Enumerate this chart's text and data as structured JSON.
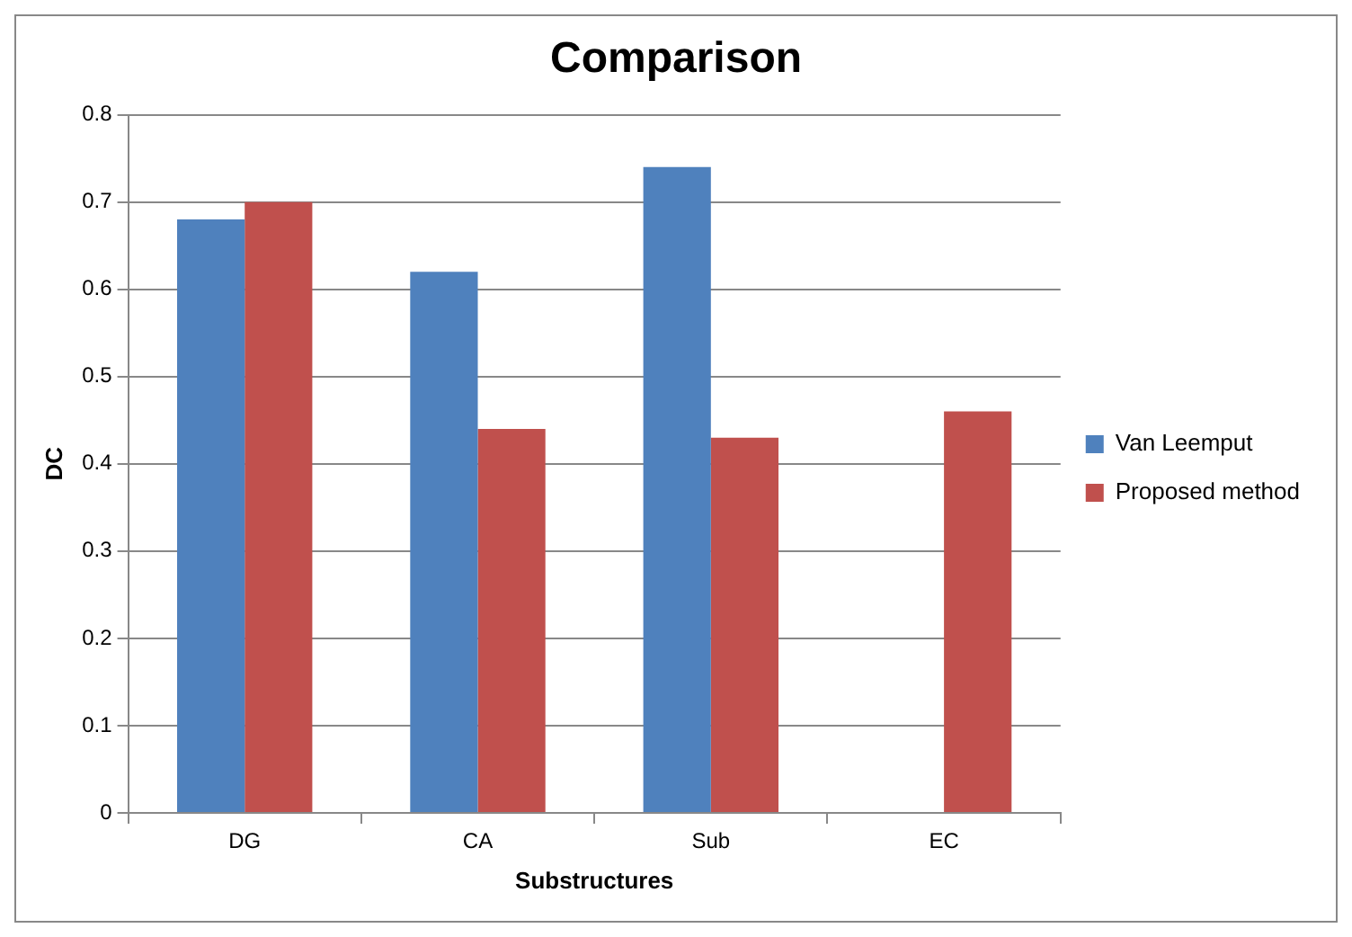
{
  "chart_data": {
    "type": "bar",
    "title": "Comparison",
    "xlabel": "Substructures",
    "ylabel": "DC",
    "categories": [
      "DG",
      "CA",
      "Sub",
      "EC"
    ],
    "series": [
      {
        "name": "Van Leemput",
        "color": "#4f81bd",
        "values": [
          0.68,
          0.62,
          0.74,
          null
        ]
      },
      {
        "name": "Proposed method",
        "color": "#c0504d",
        "values": [
          0.7,
          0.44,
          0.43,
          0.46
        ]
      }
    ],
    "ylim": [
      0,
      0.8
    ],
    "yticks": [
      0,
      0.1,
      0.2,
      0.3,
      0.4,
      0.5,
      0.6,
      0.7,
      0.8
    ],
    "grid": "y",
    "legend": "right"
  }
}
